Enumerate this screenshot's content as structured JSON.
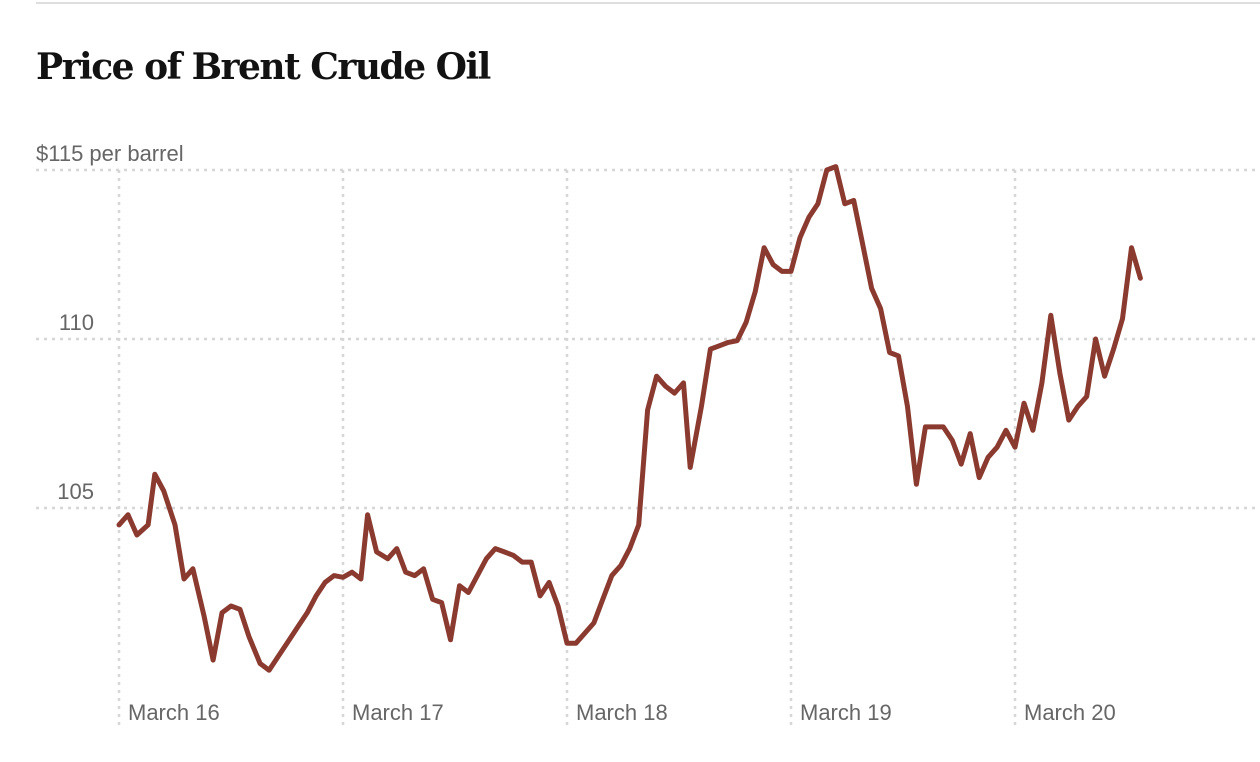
{
  "chart_data": {
    "type": "line",
    "title": "Price of Brent Crude Oil",
    "ylabel": "",
    "xlabel": "",
    "ylim": [
      99.5,
      115.5
    ],
    "y_ticks": [
      {
        "value": 115,
        "label": "$115 per barrel"
      },
      {
        "value": 110,
        "label": "110"
      },
      {
        "value": 105,
        "label": "105"
      }
    ],
    "x_ticks": [
      {
        "value": 0,
        "label": "March 16"
      },
      {
        "value": 1,
        "label": "March 17"
      },
      {
        "value": 2,
        "label": "March 18"
      },
      {
        "value": 3,
        "label": "March 19"
      },
      {
        "value": 4,
        "label": "March 20"
      }
    ],
    "grid": true,
    "line_color": "#8b3a2f",
    "grid_color": "#d6d6d6",
    "series": [
      {
        "values": [
          [
            0.0,
            104.5
          ],
          [
            0.04,
            104.8
          ],
          [
            0.08,
            104.2
          ],
          [
            0.13,
            104.5
          ],
          [
            0.16,
            106.0
          ],
          [
            0.2,
            105.5
          ],
          [
            0.25,
            104.5
          ],
          [
            0.29,
            102.9
          ],
          [
            0.33,
            103.2
          ],
          [
            0.38,
            101.8
          ],
          [
            0.42,
            100.5
          ],
          [
            0.46,
            101.9
          ],
          [
            0.5,
            102.1
          ],
          [
            0.54,
            102.0
          ],
          [
            0.58,
            101.2
          ],
          [
            0.63,
            100.4
          ],
          [
            0.67,
            100.2
          ],
          [
            0.71,
            100.6
          ],
          [
            0.75,
            101.0
          ],
          [
            0.8,
            101.5
          ],
          [
            0.84,
            101.9
          ],
          [
            0.88,
            102.4
          ],
          [
            0.92,
            102.8
          ],
          [
            0.96,
            103.0
          ],
          [
            1.0,
            102.95
          ],
          [
            1.04,
            103.1
          ],
          [
            1.08,
            102.9
          ],
          [
            1.11,
            104.8
          ],
          [
            1.15,
            103.7
          ],
          [
            1.2,
            103.5
          ],
          [
            1.24,
            103.8
          ],
          [
            1.28,
            103.1
          ],
          [
            1.32,
            103.0
          ],
          [
            1.36,
            103.2
          ],
          [
            1.4,
            102.3
          ],
          [
            1.44,
            102.2
          ],
          [
            1.48,
            101.1
          ],
          [
            1.52,
            102.7
          ],
          [
            1.56,
            102.5
          ],
          [
            1.6,
            103.0
          ],
          [
            1.64,
            103.5
          ],
          [
            1.68,
            103.8
          ],
          [
            1.72,
            103.7
          ],
          [
            1.76,
            103.6
          ],
          [
            1.8,
            103.4
          ],
          [
            1.84,
            103.4
          ],
          [
            1.88,
            102.4
          ],
          [
            1.92,
            102.8
          ],
          [
            1.96,
            102.1
          ],
          [
            2.0,
            101.0
          ],
          [
            2.04,
            101.0
          ],
          [
            2.08,
            101.3
          ],
          [
            2.12,
            101.6
          ],
          [
            2.16,
            102.3
          ],
          [
            2.2,
            103.0
          ],
          [
            2.24,
            103.3
          ],
          [
            2.28,
            103.8
          ],
          [
            2.32,
            104.5
          ],
          [
            2.36,
            107.9
          ],
          [
            2.4,
            108.9
          ],
          [
            2.44,
            108.6
          ],
          [
            2.48,
            108.4
          ],
          [
            2.52,
            108.7
          ],
          [
            2.55,
            106.2
          ],
          [
            2.6,
            108.0
          ],
          [
            2.64,
            109.7
          ],
          [
            2.68,
            109.8
          ],
          [
            2.72,
            109.9
          ],
          [
            2.76,
            109.95
          ],
          [
            2.8,
            110.5
          ],
          [
            2.84,
            111.4
          ],
          [
            2.88,
            112.7
          ],
          [
            2.92,
            112.2
          ],
          [
            2.96,
            112.0
          ],
          [
            3.0,
            112.0
          ],
          [
            3.04,
            113.0
          ],
          [
            3.08,
            113.6
          ],
          [
            3.12,
            114.0
          ],
          [
            3.16,
            115.0
          ],
          [
            3.2,
            115.1
          ],
          [
            3.24,
            114.0
          ],
          [
            3.28,
            114.1
          ],
          [
            3.32,
            112.8
          ],
          [
            3.36,
            111.5
          ],
          [
            3.4,
            110.9
          ],
          [
            3.44,
            109.6
          ],
          [
            3.48,
            109.5
          ],
          [
            3.52,
            108.0
          ],
          [
            3.56,
            105.7
          ],
          [
            3.6,
            107.4
          ],
          [
            3.64,
            107.4
          ],
          [
            3.68,
            107.4
          ],
          [
            3.72,
            107.0
          ],
          [
            3.76,
            106.3
          ],
          [
            3.8,
            107.2
          ],
          [
            3.84,
            105.9
          ],
          [
            3.88,
            106.5
          ],
          [
            3.92,
            106.8
          ],
          [
            3.96,
            107.3
          ],
          [
            4.0,
            106.8
          ],
          [
            4.04,
            108.1
          ],
          [
            4.08,
            107.3
          ],
          [
            4.12,
            108.7
          ],
          [
            4.16,
            110.7
          ],
          [
            4.2,
            109.0
          ],
          [
            4.24,
            107.6
          ],
          [
            4.28,
            108.0
          ],
          [
            4.32,
            108.3
          ],
          [
            4.36,
            110.0
          ],
          [
            4.4,
            108.9
          ],
          [
            4.44,
            109.7
          ],
          [
            4.48,
            110.6
          ],
          [
            4.52,
            112.7
          ],
          [
            4.56,
            111.8
          ]
        ]
      }
    ]
  }
}
